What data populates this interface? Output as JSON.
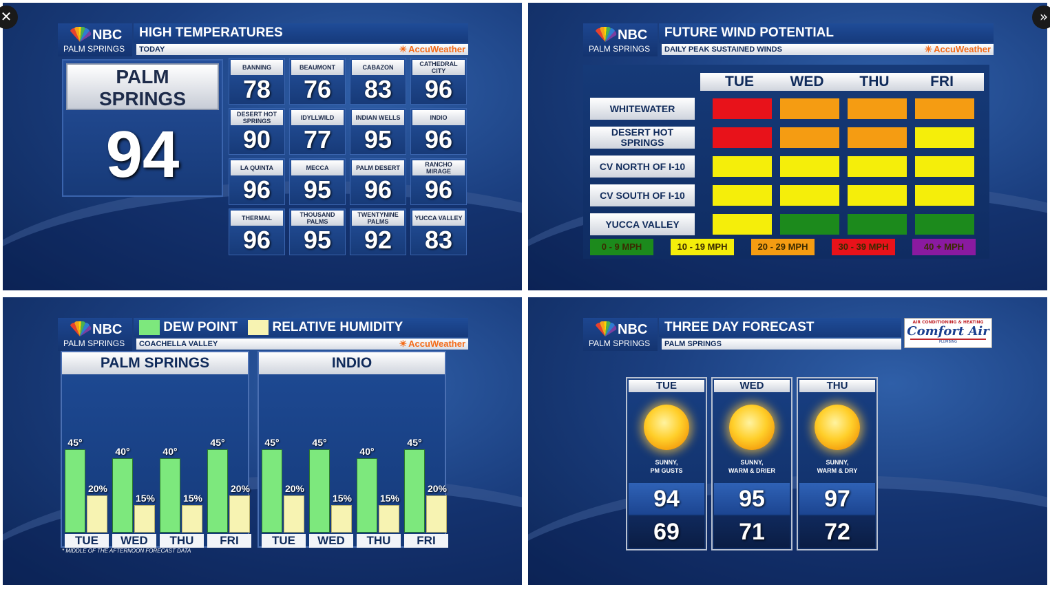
{
  "viewer": {
    "close_label": "✕",
    "next_label": "»"
  },
  "brand": {
    "network": "NBC",
    "market": "PALM SPRINGS",
    "provider": "AccuWeather"
  },
  "high_temps": {
    "title": "HIGH TEMPERATURES",
    "subtitle": "TODAY",
    "featured": {
      "name_line1": "PALM",
      "name_line2": "SPRINGS",
      "temp": "94"
    },
    "cities": [
      {
        "name": "BANNING",
        "temp": "78"
      },
      {
        "name": "BEAUMONT",
        "temp": "76"
      },
      {
        "name": "CABAZON",
        "temp": "83"
      },
      {
        "name": "CATHEDRAL CITY",
        "temp": "96"
      },
      {
        "name": "DESERT HOT SPRINGS",
        "temp": "90"
      },
      {
        "name": "IDYLLWILD",
        "temp": "77"
      },
      {
        "name": "INDIAN WELLS",
        "temp": "95"
      },
      {
        "name": "INDIO",
        "temp": "96"
      },
      {
        "name": "LA QUINTA",
        "temp": "96"
      },
      {
        "name": "MECCA",
        "temp": "95"
      },
      {
        "name": "PALM DESERT",
        "temp": "96"
      },
      {
        "name": "RANCHO MIRAGE",
        "temp": "96"
      },
      {
        "name": "THERMAL",
        "temp": "96"
      },
      {
        "name": "THOUSAND PALMS",
        "temp": "95"
      },
      {
        "name": "TWENTYNINE PALMS",
        "temp": "92"
      },
      {
        "name": "YUCCA VALLEY",
        "temp": "83"
      }
    ]
  },
  "wind": {
    "title": "FUTURE WIND POTENTIAL",
    "subtitle": "DAILY PEAK SUSTAINED WINDS",
    "days": [
      "TUE",
      "WED",
      "THU",
      "FRI"
    ],
    "zones": [
      {
        "name": "WHITEWATER",
        "levels": [
          "30-39",
          "20-29",
          "20-29",
          "20-29"
        ]
      },
      {
        "name": "DESERT HOT SPRINGS",
        "levels": [
          "30-39",
          "20-29",
          "20-29",
          "10-19"
        ]
      },
      {
        "name": "CV NORTH OF I-10",
        "levels": [
          "10-19",
          "10-19",
          "10-19",
          "10-19"
        ]
      },
      {
        "name": "CV SOUTH OF I-10",
        "levels": [
          "10-19",
          "10-19",
          "10-19",
          "10-19"
        ]
      },
      {
        "name": "YUCCA VALLEY",
        "levels": [
          "10-19",
          "0-9",
          "0-9",
          "0-9"
        ]
      }
    ],
    "legend": [
      {
        "key": "0-9",
        "label": "0 - 9 MPH",
        "color": "#1c8a1c"
      },
      {
        "key": "10-19",
        "label": "10 - 19 MPH",
        "color": "#f5ee0a"
      },
      {
        "key": "20-29",
        "label": "20 - 29 MPH",
        "color": "#f59c12"
      },
      {
        "key": "30-39",
        "label": "30 - 39 MPH",
        "color": "#e8121a"
      },
      {
        "key": "40+",
        "label": "40 + MPH",
        "color": "#8a1aa0"
      }
    ]
  },
  "humidity": {
    "legend_dew": "DEW POINT",
    "legend_rh": "RELATIVE HUMIDITY",
    "subtitle": "COACHELLA VALLEY",
    "dew_color": "#7de87d",
    "rh_color": "#f7f3b2",
    "footnote": "* MIDDLE OF THE AFTERNOON FORECAST DATA",
    "chart_data": [
      {
        "type": "bar",
        "title": "PALM SPRINGS",
        "categories": [
          "TUE",
          "WED",
          "THU",
          "FRI"
        ],
        "series": [
          {
            "name": "DEW POINT",
            "values": [
              45,
              40,
              40,
              45
            ],
            "labels": [
              "45°",
              "40°",
              "40°",
              "45°"
            ]
          },
          {
            "name": "RELATIVE HUMIDITY",
            "values": [
              20,
              15,
              15,
              20
            ],
            "labels": [
              "20%",
              "15%",
              "15%",
              "20%"
            ]
          }
        ]
      },
      {
        "type": "bar",
        "title": "INDIO",
        "categories": [
          "TUE",
          "WED",
          "THU",
          "FRI"
        ],
        "series": [
          {
            "name": "DEW POINT",
            "values": [
              45,
              45,
              40,
              45
            ],
            "labels": [
              "45°",
              "45°",
              "40°",
              "45°"
            ]
          },
          {
            "name": "RELATIVE HUMIDITY",
            "values": [
              20,
              15,
              15,
              20
            ],
            "labels": [
              "20%",
              "15%",
              "15%",
              "20%"
            ]
          }
        ]
      }
    ]
  },
  "forecast": {
    "title": "THREE DAY FORECAST",
    "subtitle": "PALM SPRINGS",
    "sponsor": {
      "top": "AIR CONDITIONING & HEATING",
      "name": "Comfort Air",
      "bottom": "PLUMBING"
    },
    "days": [
      {
        "day": "TUE",
        "icon": "sun-icon",
        "cond1": "SUNNY,",
        "cond2": "PM GUSTS",
        "hi": "94",
        "lo": "69"
      },
      {
        "day": "WED",
        "icon": "sun-icon",
        "cond1": "SUNNY,",
        "cond2": "WARM & DRIER",
        "hi": "95",
        "lo": "71"
      },
      {
        "day": "THU",
        "icon": "sun-icon",
        "cond1": "SUNNY,",
        "cond2": "WARM & DRY",
        "hi": "97",
        "lo": "72"
      }
    ]
  }
}
